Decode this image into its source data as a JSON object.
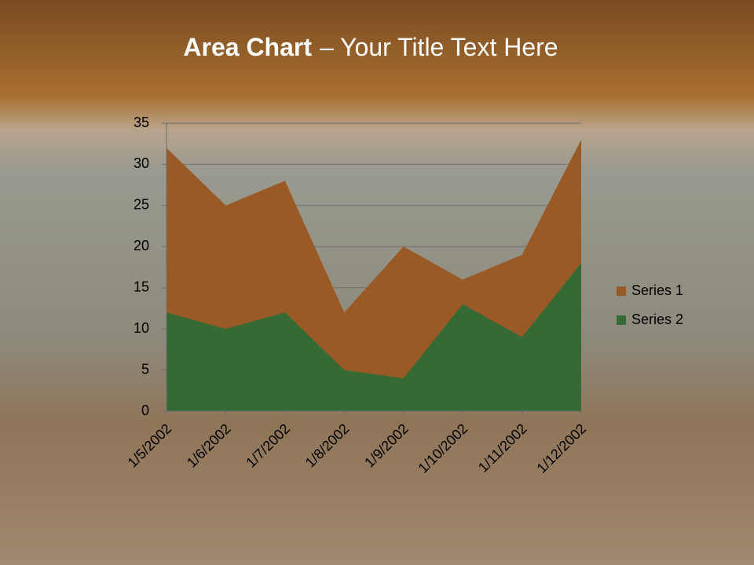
{
  "chart_data": {
    "type": "area",
    "title": [
      "Area Chart",
      "– Your Title Text Here"
    ],
    "categories": [
      "1/5/2002",
      "1/6/2002",
      "1/7/2002",
      "1/8/2002",
      "1/9/2002",
      "1/10/2002",
      "1/11/2002",
      "1/12/2002"
    ],
    "series": [
      {
        "name": "Series 1",
        "color": "#9a5a26",
        "values": [
          32,
          25,
          28,
          12,
          20,
          16,
          19,
          33
        ]
      },
      {
        "name": "Series 2",
        "color": "#356a35",
        "values": [
          12,
          10,
          12,
          5,
          4,
          13,
          9,
          18
        ]
      }
    ],
    "ylim": [
      0,
      35
    ],
    "yticks": [
      0,
      5,
      10,
      15,
      20,
      25,
      30,
      35
    ],
    "grid": true,
    "legend": "right"
  }
}
